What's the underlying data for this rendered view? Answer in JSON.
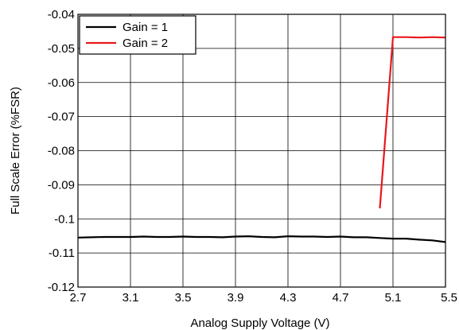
{
  "chart_data": {
    "type": "line",
    "title": "",
    "xlabel": "Analog Supply Voltage (V)",
    "ylabel": "Full Scale Error (%FSR)",
    "xlim": [
      2.7,
      5.5
    ],
    "ylim": [
      -0.12,
      -0.04
    ],
    "xticks": [
      2.7,
      3.1,
      3.5,
      3.9,
      4.3,
      4.7,
      5.1,
      5.5
    ],
    "xtick_labels": [
      "2.7",
      "3.1",
      "3.5",
      "3.9",
      "4.3",
      "4.7",
      "5.1",
      "5.5"
    ],
    "yticks": [
      -0.12,
      -0.11,
      -0.1,
      -0.09,
      -0.08,
      -0.07,
      -0.06,
      -0.05,
      -0.04
    ],
    "ytick_labels": [
      "-0.12",
      "-0.11",
      "-0.1",
      "-0.09",
      "-0.08",
      "-0.07",
      "-0.06",
      "-0.05",
      "-0.04"
    ],
    "grid": true,
    "legend_position": "top-left",
    "series": [
      {
        "name": "Gain = 1",
        "color": "#000000",
        "x": [
          2.7,
          2.8,
          2.9,
          3.0,
          3.1,
          3.2,
          3.3,
          3.4,
          3.5,
          3.6,
          3.7,
          3.8,
          3.9,
          4.0,
          4.1,
          4.2,
          4.3,
          4.4,
          4.5,
          4.6,
          4.7,
          4.8,
          4.9,
          5.0,
          5.1,
          5.2,
          5.3,
          5.4,
          5.5
        ],
        "y": [
          -0.1055,
          -0.1054,
          -0.1053,
          -0.1053,
          -0.1053,
          -0.1052,
          -0.1053,
          -0.1053,
          -0.1052,
          -0.1053,
          -0.1053,
          -0.1054,
          -0.1052,
          -0.1051,
          -0.1053,
          -0.1054,
          -0.1051,
          -0.1052,
          -0.1052,
          -0.1053,
          -0.1052,
          -0.1054,
          -0.1054,
          -0.1056,
          -0.1058,
          -0.1058,
          -0.1061,
          -0.1063,
          -0.1068
        ]
      },
      {
        "name": "Gain = 2",
        "color": "#e8171c",
        "x": [
          5.0,
          5.1,
          5.2,
          5.3,
          5.4,
          5.5
        ],
        "y": [
          -0.0969,
          -0.0467,
          -0.0467,
          -0.0468,
          -0.0467,
          -0.0468
        ]
      }
    ]
  }
}
